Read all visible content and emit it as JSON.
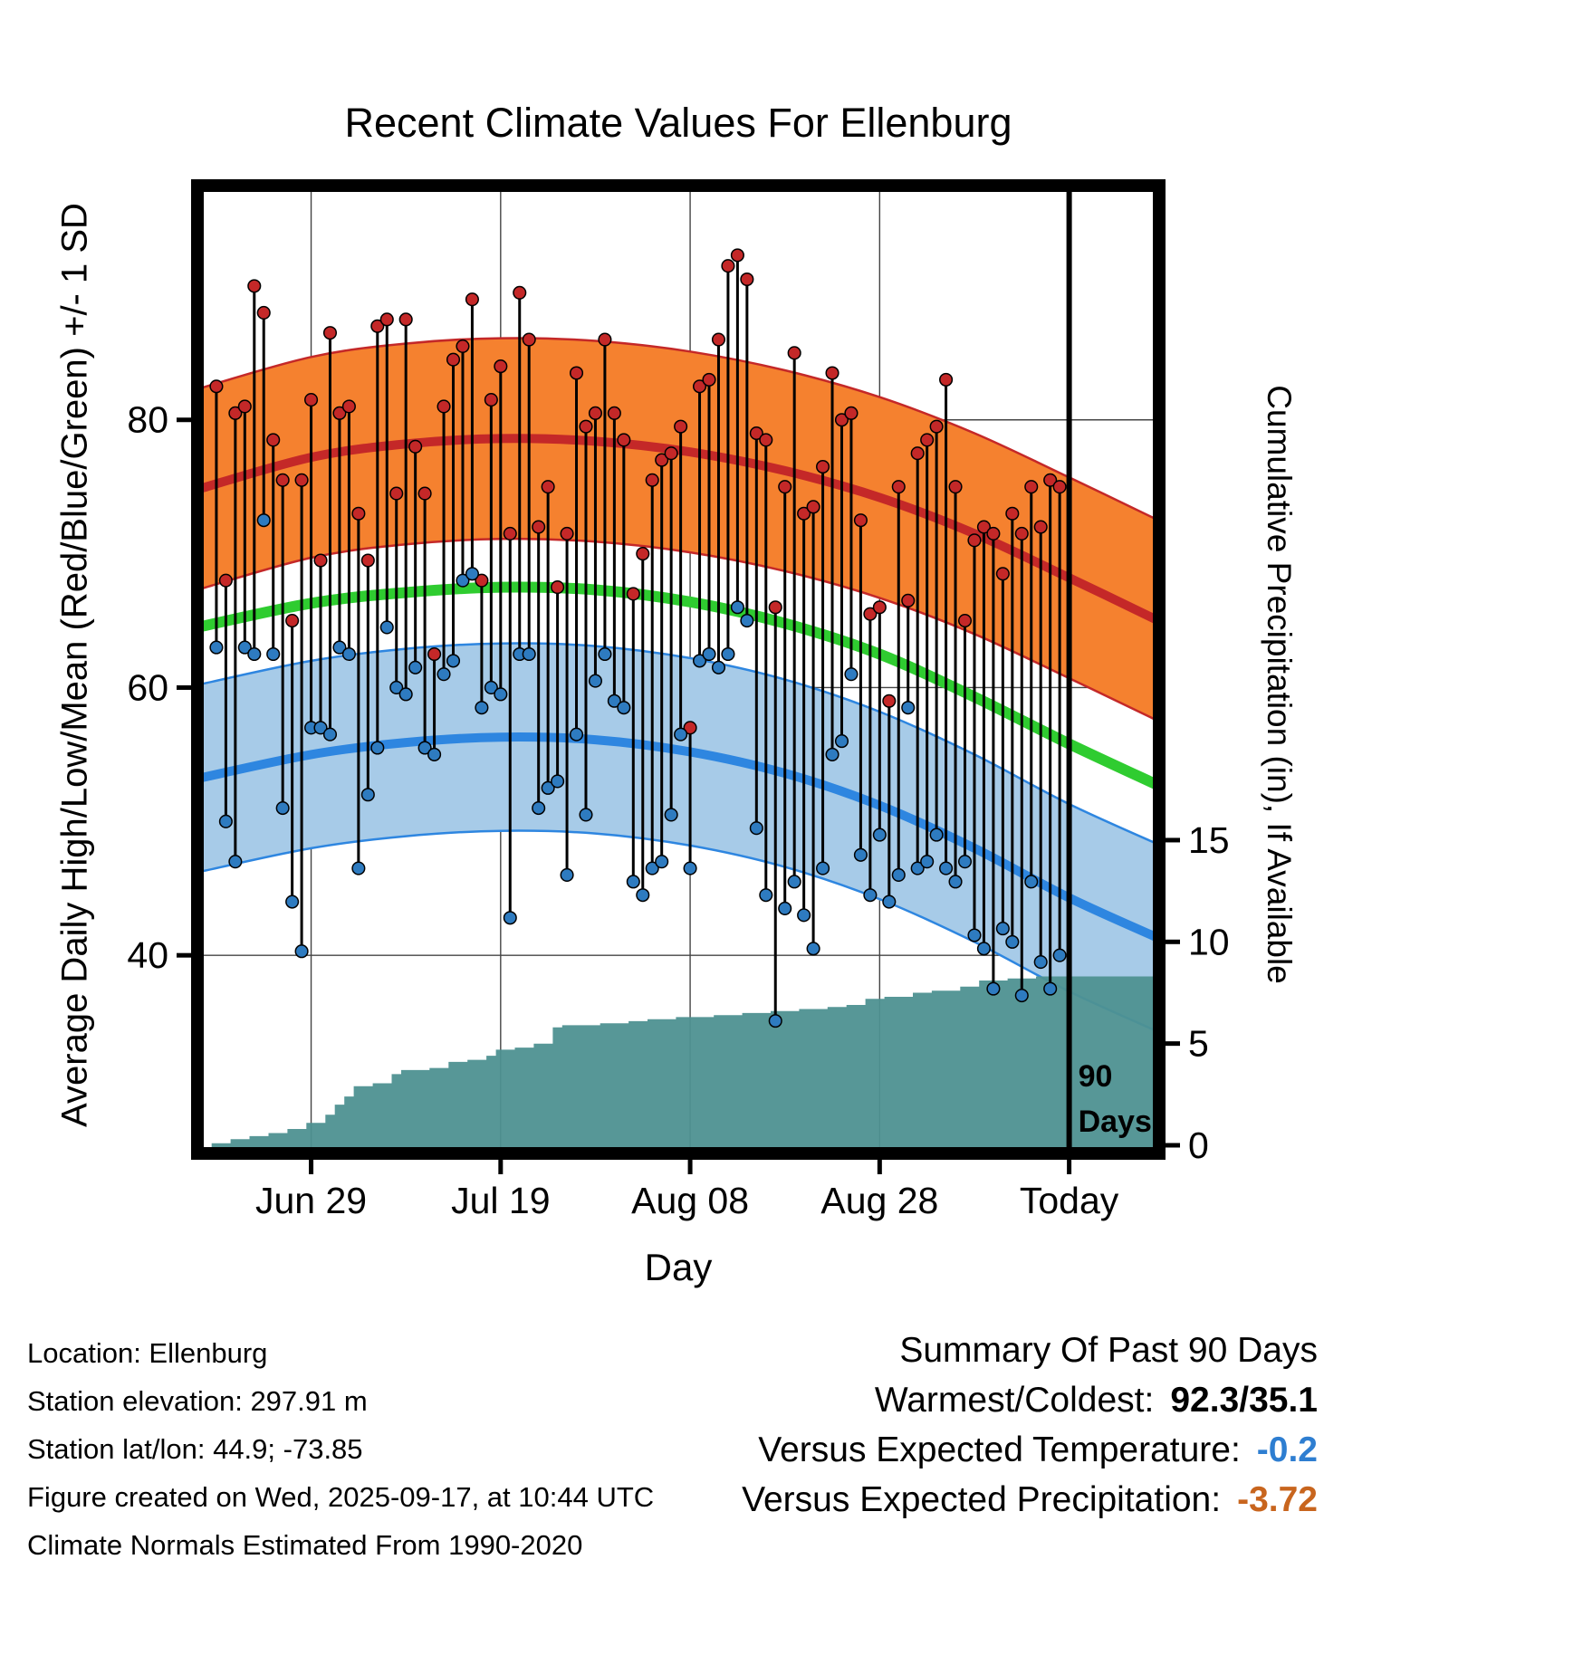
{
  "title": "Recent Climate Values For Ellenburg",
  "axes": {
    "left_label": "Average Daily High/Low/Mean (Red/Blue/Green) +/- 1 SD",
    "right_label": "Cumulative Precipitation (in), If Available",
    "x_label": "Day",
    "left_ticks": [
      80,
      60,
      40
    ],
    "right_ticks": [
      15,
      10,
      5,
      0
    ],
    "x_ticks": [
      {
        "day": 10,
        "label": "Jun 29"
      },
      {
        "day": 30,
        "label": "Jul 19"
      },
      {
        "day": 50,
        "label": "Aug 08"
      },
      {
        "day": 70,
        "label": "Aug 28"
      },
      {
        "day": 90,
        "label": "Today"
      }
    ]
  },
  "annotations": {
    "period_line_day": 90,
    "period_label_line1": "90",
    "period_label_line2": "Days"
  },
  "footer": {
    "lines": [
      "Location: Ellenburg",
      "Station elevation: 297.91 m",
      "Station lat/lon: 44.9; -73.85",
      "Figure created on Wed, 2025-09-17, at 10:44 UTC",
      "Climate Normals Estimated From 1990-2020"
    ]
  },
  "summary": {
    "heading": "Summary Of Past 90 Days",
    "rows": [
      {
        "label": "Warmest/Coldest:",
        "value": "92.3/35.1",
        "color": "#000000"
      },
      {
        "label": "Versus Expected Temperature:",
        "value": "-0.2",
        "color": "#2E7ED1"
      },
      {
        "label": "Versus Expected Precipitation:",
        "value": "-3.72",
        "color": "#C8651E"
      }
    ]
  },
  "colors": {
    "high_band": "#F5812F",
    "high_line": "#C42828",
    "mean_line": "#2FCC30",
    "low_band": "#A7CBE8",
    "low_line": "#2E86E0",
    "precip_fill": "#4E9191",
    "dot_high": "#C42828",
    "dot_low": "#2E7BC0",
    "grid": "#444444"
  },
  "chart_data": {
    "type": "line",
    "title": "Recent Climate Values For Ellenburg",
    "xlabel": "Day",
    "x_axis": {
      "unit": "day index, 0 = first of past 90 days",
      "tick_days": [
        10,
        30,
        50,
        70,
        90
      ],
      "tick_labels": [
        "Jun 29",
        "Jul 19",
        "Aug 08",
        "Aug 28",
        "Today"
      ],
      "range": [
        -2,
        99.5
      ]
    },
    "temp_axis": {
      "ticks": [
        40,
        60,
        80
      ],
      "range": [
        25.2,
        97.5
      ]
    },
    "precip_axis": {
      "ticks": [
        0,
        5,
        10,
        15
      ]
    },
    "daily_high": [
      82.5,
      68.0,
      80.5,
      81.0,
      90.0,
      88.0,
      78.5,
      75.5,
      65.0,
      75.5,
      81.5,
      69.5,
      86.5,
      80.5,
      81.0,
      73.0,
      69.5,
      87.0,
      87.5,
      74.5,
      87.5,
      78.0,
      74.5,
      62.5,
      81.0,
      84.5,
      85.5,
      89.0,
      68.0,
      81.5,
      84.0,
      71.5,
      89.5,
      86.0,
      72.0,
      75.0,
      67.5,
      71.5,
      83.5,
      79.5,
      80.5,
      86.0,
      80.5,
      78.5,
      67.0,
      70.0,
      75.5,
      77.0,
      77.5,
      79.5,
      57.0,
      82.5,
      83.0,
      86.0,
      91.5,
      92.3,
      90.5,
      79.0,
      78.5,
      66.0,
      75.0,
      85.0,
      73.0,
      73.5,
      76.5,
      83.5,
      80.0,
      80.5,
      72.5,
      65.5,
      66.0,
      59.0,
      75.0,
      66.5,
      77.5,
      78.5,
      79.5,
      83.0,
      75.0,
      65.0,
      71.0,
      72.0,
      71.5,
      68.5,
      73.0,
      71.5,
      75.0,
      72.0,
      75.5,
      75.0
    ],
    "daily_low": [
      63.0,
      50.0,
      47.0,
      63.0,
      62.5,
      72.5,
      62.5,
      51.0,
      44.0,
      40.3,
      57.0,
      57.0,
      56.5,
      63.0,
      62.5,
      46.5,
      52.0,
      55.5,
      64.5,
      60.0,
      59.5,
      61.5,
      55.5,
      55.0,
      61.0,
      62.0,
      68.0,
      68.5,
      58.5,
      60.0,
      59.5,
      42.8,
      62.5,
      62.5,
      51.0,
      52.5,
      53.0,
      46.0,
      56.5,
      50.5,
      60.5,
      62.5,
      59.0,
      58.5,
      45.5,
      44.5,
      46.5,
      47.0,
      50.5,
      56.5,
      46.5,
      62.0,
      62.5,
      61.5,
      62.5,
      66.0,
      65.0,
      49.5,
      44.5,
      35.1,
      43.5,
      45.5,
      43.0,
      40.5,
      46.5,
      55.0,
      56.0,
      61.0,
      47.5,
      44.5,
      49.0,
      44.0,
      46.0,
      58.5,
      46.5,
      47.0,
      49.0,
      46.5,
      45.5,
      47.0,
      41.5,
      40.5,
      37.5,
      42.0,
      41.0,
      37.0,
      45.5,
      39.5,
      37.5,
      40.0
    ],
    "cumulative_precip": [
      0.1,
      0.1,
      0.3,
      0.3,
      0.45,
      0.45,
      0.6,
      0.6,
      0.8,
      0.8,
      1.1,
      1.1,
      1.5,
      2.0,
      2.4,
      2.9,
      2.9,
      3.05,
      3.05,
      3.5,
      3.7,
      3.7,
      3.7,
      3.8,
      3.8,
      4.1,
      4.1,
      4.2,
      4.2,
      4.4,
      4.7,
      4.7,
      4.8,
      4.8,
      5.0,
      5.0,
      5.8,
      5.9,
      5.9,
      5.9,
      5.9,
      6.0,
      6.0,
      6.0,
      6.1,
      6.1,
      6.2,
      6.2,
      6.2,
      6.3,
      6.3,
      6.3,
      6.3,
      6.4,
      6.4,
      6.4,
      6.5,
      6.5,
      6.5,
      6.6,
      6.6,
      6.6,
      6.7,
      6.7,
      6.7,
      6.8,
      6.8,
      6.9,
      6.9,
      7.2,
      7.2,
      7.3,
      7.3,
      7.3,
      7.5,
      7.5,
      7.6,
      7.6,
      7.6,
      7.8,
      7.8,
      8.1,
      8.1,
      8.1,
      8.2,
      8.2,
      8.2,
      8.3,
      8.3,
      8.3
    ],
    "normals": {
      "days": [
        -2,
        10,
        20,
        30,
        40,
        50,
        60,
        70,
        80,
        90,
        100
      ],
      "high_mean": [
        74.8,
        77.2,
        78.2,
        78.6,
        78.4,
        77.6,
        76.2,
        74.2,
        71.5,
        68.2,
        64.8
      ],
      "mean": [
        64.5,
        66.3,
        67.1,
        67.5,
        67.3,
        66.4,
        64.8,
        62.5,
        59.3,
        55.8,
        52.5
      ],
      "low_mean": [
        53.2,
        55.0,
        55.9,
        56.3,
        56.1,
        55.2,
        53.6,
        51.2,
        48.0,
        44.3,
        41.1
      ],
      "high_sd": 7.5,
      "low_sd": 7.0
    },
    "summary_stats": {
      "warmest": 92.3,
      "coldest": 35.1,
      "vs_expected_temp": -0.2,
      "vs_expected_precip": -3.72
    }
  }
}
